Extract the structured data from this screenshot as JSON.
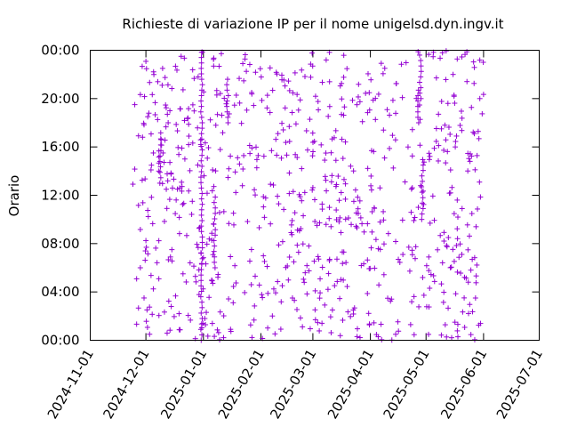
{
  "chart_data": {
    "type": "scatter",
    "title": "Richieste di variazione IP per il nome unigelsd.dyn.ingv.it",
    "xlabel": "",
    "ylabel": "Orario",
    "marker": "+",
    "color": "#9400d3",
    "grid": false,
    "legend": "none",
    "xlim": [
      "2024-11-01",
      "2025-07-01"
    ],
    "ylim": [
      "00:00",
      "24:00"
    ],
    "x_ticks": [
      "2024-11-01",
      "2024-12-01",
      "2025-01-01",
      "2025-02-01",
      "2025-03-01",
      "2025-04-01",
      "2025-05-01",
      "2025-06-01",
      "2025-07-01"
    ],
    "y_ticks": [
      "00:00",
      "04:00",
      "08:00",
      "12:00",
      "16:00",
      "20:00",
      "00:00"
    ],
    "point_generation": "approximate — dense scatter of ~780 DNS update requests spread between 2024-11-24 and 2025-06-01 at all hours of day",
    "points": [
      [
        "2024-11-24",
        "12:55"
      ],
      [
        "2024-11-25",
        "14:10"
      ],
      [
        "2024-11-25",
        "19:30"
      ],
      [
        "2024-11-26",
        "01:20"
      ],
      [
        "2024-11-26",
        "05:05"
      ],
      [
        "2024-11-27",
        "02:40"
      ],
      [
        "2024-11-27",
        "16:55"
      ],
      [
        "2024-11-27",
        "11:10"
      ],
      [
        "2024-11-28",
        "06:00"
      ],
      [
        "2024-11-28",
        "20:20"
      ],
      [
        "2024-11-28",
        "09:10"
      ],
      [
        "2024-11-29",
        "22:40"
      ],
      [
        "2024-11-29",
        "13:15"
      ],
      [
        "2024-11-30",
        "03:30"
      ],
      [
        "2024-11-30",
        "17:50"
      ],
      [
        "2024-12-01",
        "23:05"
      ],
      [
        "2024-12-01",
        "08:15"
      ],
      [
        "2024-12-02",
        "10:45"
      ],
      [
        "2024-12-02",
        "18:30"
      ],
      [
        "2024-12-03",
        "00:30"
      ],
      [
        "2024-12-03",
        "21:20"
      ],
      [
        "2024-12-04",
        "11:50"
      ],
      [
        "2024-12-05",
        "04:15"
      ],
      [
        "2024-12-05",
        "15:30"
      ],
      [
        "2024-12-06",
        "19:40"
      ],
      [
        "2024-12-07",
        "06:25"
      ],
      [
        "2024-12-08",
        "14:00"
      ],
      [
        "2024-12-08",
        "14:40"
      ],
      [
        "2024-12-08",
        "15:10"
      ],
      [
        "2024-12-08",
        "15:40"
      ],
      [
        "2024-12-09",
        "16:10"
      ],
      [
        "2024-12-09",
        "16:40"
      ],
      [
        "2024-12-09",
        "17:10"
      ],
      [
        "2024-12-10",
        "22:30"
      ],
      [
        "2024-12-11",
        "02:20"
      ],
      [
        "2024-12-11",
        "09:50"
      ],
      [
        "2024-12-12",
        "12:30"
      ],
      [
        "2024-12-13",
        "18:00"
      ],
      [
        "2024-12-14",
        "00:50"
      ],
      [
        "2024-12-15",
        "07:30"
      ],
      [
        "2024-12-15",
        "20:50"
      ],
      [
        "2024-12-16",
        "13:20"
      ],
      [
        "2024-12-17",
        "03:40"
      ],
      [
        "2024-12-18",
        "17:20"
      ],
      [
        "2024-12-19",
        "10:10"
      ],
      [
        "2024-12-20",
        "23:30"
      ],
      [
        "2024-12-21",
        "05:30"
      ],
      [
        "2024-12-22",
        "15:00"
      ],
      [
        "2024-12-23",
        "08:40"
      ],
      [
        "2024-12-24",
        "19:10"
      ],
      [
        "2024-12-25",
        "01:40"
      ],
      [
        "2024-12-26",
        "11:30"
      ],
      [
        "2024-12-27",
        "21:40"
      ],
      [
        "2024-12-28",
        "04:50"
      ],
      [
        "2024-12-29",
        "14:30"
      ],
      [
        "2024-12-30",
        "09:20"
      ],
      [
        "2024-12-31",
        "23:50"
      ],
      [
        "2025-01-01",
        "06:50"
      ],
      [
        "2025-01-02",
        "16:20"
      ],
      [
        "2025-01-03",
        "12:10"
      ]
    ]
  }
}
